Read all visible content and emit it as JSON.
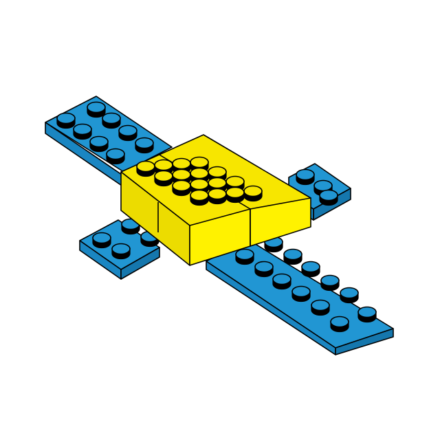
{
  "colors": {
    "background": "#ffffff",
    "outline": "#000000",
    "blue_top": "#2196d3",
    "blue_side_left": "#1a86c2",
    "blue_side_right": "#1577ad",
    "yellow_top": "#f7e600",
    "yellow_side_left": "#ecdc00",
    "yellow_side_right": "#fff200"
  },
  "model": {
    "description_parts": [
      {
        "name": "blue-plate-long",
        "color": "blue",
        "studs_long": 10,
        "studs_wide": 2
      },
      {
        "name": "blue-plate-short",
        "color": "blue",
        "studs_long": 6,
        "studs_wide": 2
      },
      {
        "name": "yellow-brick-back",
        "color": "yellow",
        "studs_long": 2,
        "studs_wide": 4
      },
      {
        "name": "yellow-brick-front",
        "color": "yellow",
        "studs_long": 2,
        "studs_wide": 4
      }
    ]
  }
}
